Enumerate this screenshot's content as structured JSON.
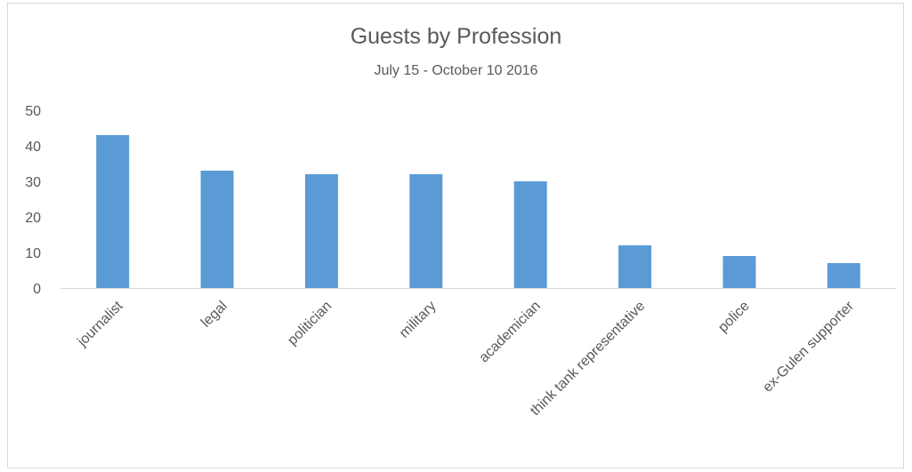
{
  "chart_data": {
    "type": "bar",
    "title": "Guests by Profession",
    "subtitle": "July 15 - October 10 2016",
    "categories": [
      "journalist",
      "legal",
      "politician",
      "military",
      "academician",
      "think tank representative",
      "police",
      "ex-Gulen supporter"
    ],
    "values": [
      43,
      33,
      32,
      32,
      30,
      12,
      9,
      7
    ],
    "yticks": [
      "0",
      "10",
      "20",
      "30",
      "40",
      "50"
    ],
    "ylim": [
      0,
      50
    ],
    "grid": false,
    "legend": "none",
    "colors": {
      "bar": "#5b9bd5",
      "axis": "#d9d9d9",
      "text": "#595959"
    }
  }
}
